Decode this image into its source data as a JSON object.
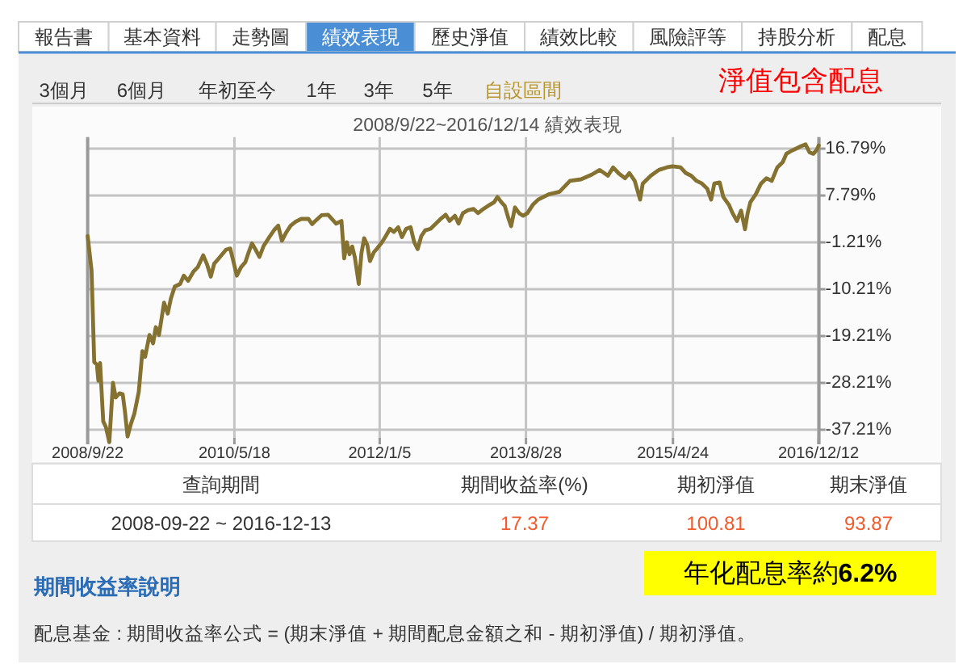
{
  "chart_data": {
    "type": "line",
    "title": "2008/9/22~2016/12/14 績效表現",
    "annotations": [
      "報告書",
      "基本資料",
      "走勢圖",
      "績效表現",
      "歷史淨值",
      "績效比較",
      "風險評等",
      "持股分析",
      "配息",
      "3個月",
      "6個月",
      "年初至今",
      "1年",
      "3年",
      "5年",
      "自設區間",
      "淨值包含配息",
      "查詢期間",
      "期間收益率(%)",
      "期初淨值",
      "期末淨值",
      "2008-09-22 ~ 2016-12-13",
      "17.37",
      "100.81",
      "93.87",
      "期間收益率說明",
      "年化配息率約6.2%",
      "配息基金 : 期間收益率公式 = (期末淨值 + 期間配息金額之和 - 期初淨值) / 期初淨值。"
    ],
    "x": [
      "2008-09-22",
      "2008-10-08",
      "2008-10-19",
      "2008-10-30",
      "2008-11-05",
      "2008-11-12",
      "2008-11-25",
      "2008-12-06",
      "2008-12-20",
      "2009-01-04",
      "2009-01-15",
      "2009-01-31",
      "2009-02-13",
      "2009-02-22",
      "2009-03-05",
      "2009-03-18",
      "2009-04-02",
      "2009-04-20",
      "2009-05-05",
      "2009-05-16",
      "2009-06-03",
      "2009-06-18",
      "2009-06-29",
      "2009-07-12",
      "2009-08-02",
      "2009-08-17",
      "2009-08-30",
      "2009-09-15",
      "2009-10-07",
      "2009-10-22",
      "2009-11-09",
      "2009-12-01",
      "2009-12-18",
      "2010-01-10",
      "2010-01-26",
      "2010-02-10",
      "2010-02-24",
      "2010-03-11",
      "2010-03-29",
      "2010-04-14",
      "2010-05-01",
      "2010-05-12",
      "2010-05-28",
      "2010-06-14",
      "2010-07-02",
      "2010-07-15",
      "2010-07-29",
      "2010-08-13",
      "2010-08-29",
      "2010-09-15",
      "2010-10-07",
      "2010-10-29",
      "2010-11-14",
      "2010-11-29",
      "2010-12-17",
      "2011-01-04",
      "2011-01-26",
      "2011-02-17",
      "2011-03-18",
      "2011-04-02",
      "2011-04-13",
      "2011-05-11",
      "2011-06-07",
      "2011-07-10",
      "2011-08-01",
      "2011-08-12",
      "2011-08-23",
      "2011-09-03",
      "2011-09-14",
      "2011-09-25",
      "2011-10-11",
      "2011-10-22",
      "2011-11-02",
      "2011-11-15",
      "2011-11-26",
      "2011-12-12",
      "2011-12-27",
      "2012-01-14",
      "2012-01-30",
      "2012-02-16",
      "2012-03-03",
      "2012-03-21",
      "2012-04-05",
      "2012-04-23",
      "2012-05-11",
      "2012-05-26",
      "2012-06-09",
      "2012-06-24",
      "2012-07-10",
      "2012-08-01",
      "2012-08-23",
      "2012-09-14",
      "2012-10-02",
      "2012-10-18",
      "2012-11-09",
      "2012-11-24",
      "2012-12-12",
      "2013-01-03",
      "2013-01-25",
      "2013-02-12",
      "2013-03-06",
      "2013-04-01",
      "2013-04-19",
      "2013-05-03",
      "2013-05-19",
      "2013-06-02",
      "2013-06-17",
      "2013-06-28",
      "2013-07-14",
      "2013-07-31",
      "2013-08-16",
      "2013-09-03",
      "2013-09-25",
      "2013-10-17",
      "2013-11-29",
      "2014-01-13",
      "2014-02-25",
      "2014-04-11",
      "2014-05-25",
      "2014-06-27",
      "2014-07-31",
      "2014-08-21",
      "2014-09-12",
      "2014-10-09",
      "2014-10-27",
      "2014-11-18",
      "2014-12-10",
      "2014-12-21",
      "2015-01-23",
      "2015-02-25",
      "2015-03-30",
      "2015-04-22",
      "2015-05-25",
      "2015-06-16",
      "2015-07-08",
      "2015-07-30",
      "2015-08-21",
      "2015-09-12",
      "2015-09-28",
      "2015-10-11",
      "2015-11-02",
      "2015-11-17",
      "2015-12-10",
      "2015-12-25",
      "2016-01-12",
      "2016-01-29",
      "2016-02-14",
      "2016-02-25",
      "2016-03-07",
      "2016-03-29",
      "2016-04-20",
      "2016-05-12",
      "2016-06-03",
      "2016-06-26",
      "2016-07-18",
      "2016-08-02",
      "2016-08-20",
      "2016-09-11",
      "2016-10-03",
      "2016-10-20",
      "2016-11-05",
      "2016-11-21",
      "2016-12-04",
      "2016-12-13"
    ],
    "series": [
      {
        "color": "#857130",
        "values": [
          0,
          -6.6,
          -24.2,
          -24.7,
          -27.8,
          -24.4,
          -35.6,
          -36.7,
          -39.6,
          -28.2,
          -31.0,
          -30.2,
          -30.4,
          -33.6,
          -38.5,
          -36.2,
          -34.1,
          -29.9,
          -22.1,
          -23.2,
          -19.0,
          -20.6,
          -17.5,
          -19.0,
          -12.8,
          -14.9,
          -12.0,
          -9.7,
          -9.2,
          -7.6,
          -8.6,
          -6.8,
          -6.0,
          -3.7,
          -5.5,
          -7.8,
          -5.3,
          -4.5,
          -3.5,
          -2.6,
          -2.4,
          -4.5,
          -7.6,
          -6.0,
          -5.0,
          -3.2,
          -1.4,
          -2.6,
          -4.0,
          -1.9,
          -0.3,
          1.2,
          2.0,
          -0.9,
          0.7,
          2.0,
          2.8,
          3.3,
          3.3,
          2.3,
          2.8,
          4.0,
          4.1,
          2.4,
          2.9,
          -4.3,
          -1.2,
          -3.5,
          -2.0,
          -4.1,
          -9.2,
          -3.3,
          -0.4,
          -1.7,
          -4.8,
          -3.1,
          -2.3,
          -1.2,
          0.0,
          1.4,
          0.8,
          1.7,
          -0.2,
          1.4,
          1.7,
          -1.2,
          -2.5,
          0.0,
          1.1,
          1.4,
          2.4,
          3.4,
          4.1,
          2.9,
          3.9,
          2.4,
          4.4,
          5.0,
          5.2,
          4.4,
          5.2,
          6.0,
          6.5,
          7.5,
          6.5,
          5.8,
          3.4,
          1.9,
          5.5,
          4.4,
          3.9,
          4.4,
          6.0,
          7.0,
          8.0,
          8.5,
          10.6,
          10.9,
          11.8,
          12.7,
          11.6,
          13.2,
          12.1,
          11.1,
          12.1,
          10.6,
          7.0,
          10.1,
          11.6,
          12.7,
          13.2,
          13.4,
          13.2,
          12.1,
          11.6,
          10.6,
          10.1,
          9.1,
          7.0,
          10.1,
          10.3,
          7.5,
          6.0,
          4.4,
          2.9,
          4.9,
          1.3,
          4.4,
          6.5,
          8.0,
          10.1,
          11.1,
          10.6,
          13.2,
          14.2,
          15.8,
          16.3,
          16.8,
          17.3,
          17.6,
          16.1,
          15.8,
          16.5,
          17.4
        ]
      }
    ],
    "xlim": [
      "2008-09-22",
      "2016-12-14"
    ],
    "xticks": [
      {
        "value": "2008-09-22",
        "label": "2008/9/22"
      },
      {
        "value": "2010-05-18",
        "label": "2010/5/18"
      },
      {
        "value": "2012-01-05",
        "label": "2012/1/5"
      },
      {
        "value": "2013-08-28",
        "label": "2013/8/28"
      },
      {
        "value": "2015-04-24",
        "label": "2015/4/24"
      },
      {
        "value": "2016-12-12",
        "label": "2016/12/12"
      }
    ],
    "ylim": [
      -40,
      19
    ],
    "yticks": [
      {
        "value": 16.79,
        "label": "16.79%"
      },
      {
        "value": 7.79,
        "label": "7.79%"
      },
      {
        "value": -1.21,
        "label": "-1.21%"
      },
      {
        "value": -10.21,
        "label": "-10.21%"
      },
      {
        "value": -19.21,
        "label": "-19.21%"
      },
      {
        "value": -28.21,
        "label": "-28.21%"
      },
      {
        "value": -37.21,
        "label": "-37.21%"
      }
    ],
    "grid": true,
    "line_style": "solid"
  }
}
